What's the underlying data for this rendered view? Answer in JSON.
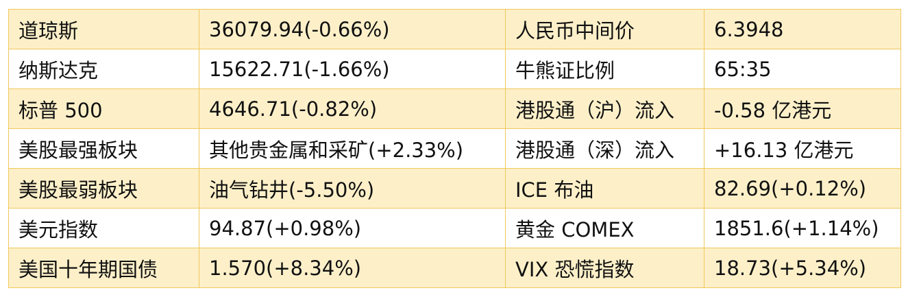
{
  "table": {
    "rows": [
      [
        "道琼斯",
        "36079.94(-0.66%)",
        "人民币中间价",
        "6.3948"
      ],
      [
        "纳斯达克",
        "15622.71(-1.66%)",
        "牛熊证比例",
        "65:35"
      ],
      [
        "标普 500",
        "4646.71(-0.82%)",
        "港股通（沪）流入",
        "-0.58 亿港元"
      ],
      [
        "美股最强板块",
        "其他贵金属和采矿(+2.33%)",
        "港股通（深）流入",
        "+16.13 亿港元"
      ],
      [
        "美股最弱板块",
        "油气钻井(-5.50%)",
        "ICE 布油",
        "82.69(+0.12%)"
      ],
      [
        "美元指数",
        "94.87(+0.98%)",
        "黄金 COMEX",
        "1851.6(+1.14%)"
      ],
      [
        "美国十年期国债",
        "1.570(+8.34%)",
        "VIX 恐慌指数",
        "18.73(+5.34%)"
      ]
    ]
  }
}
